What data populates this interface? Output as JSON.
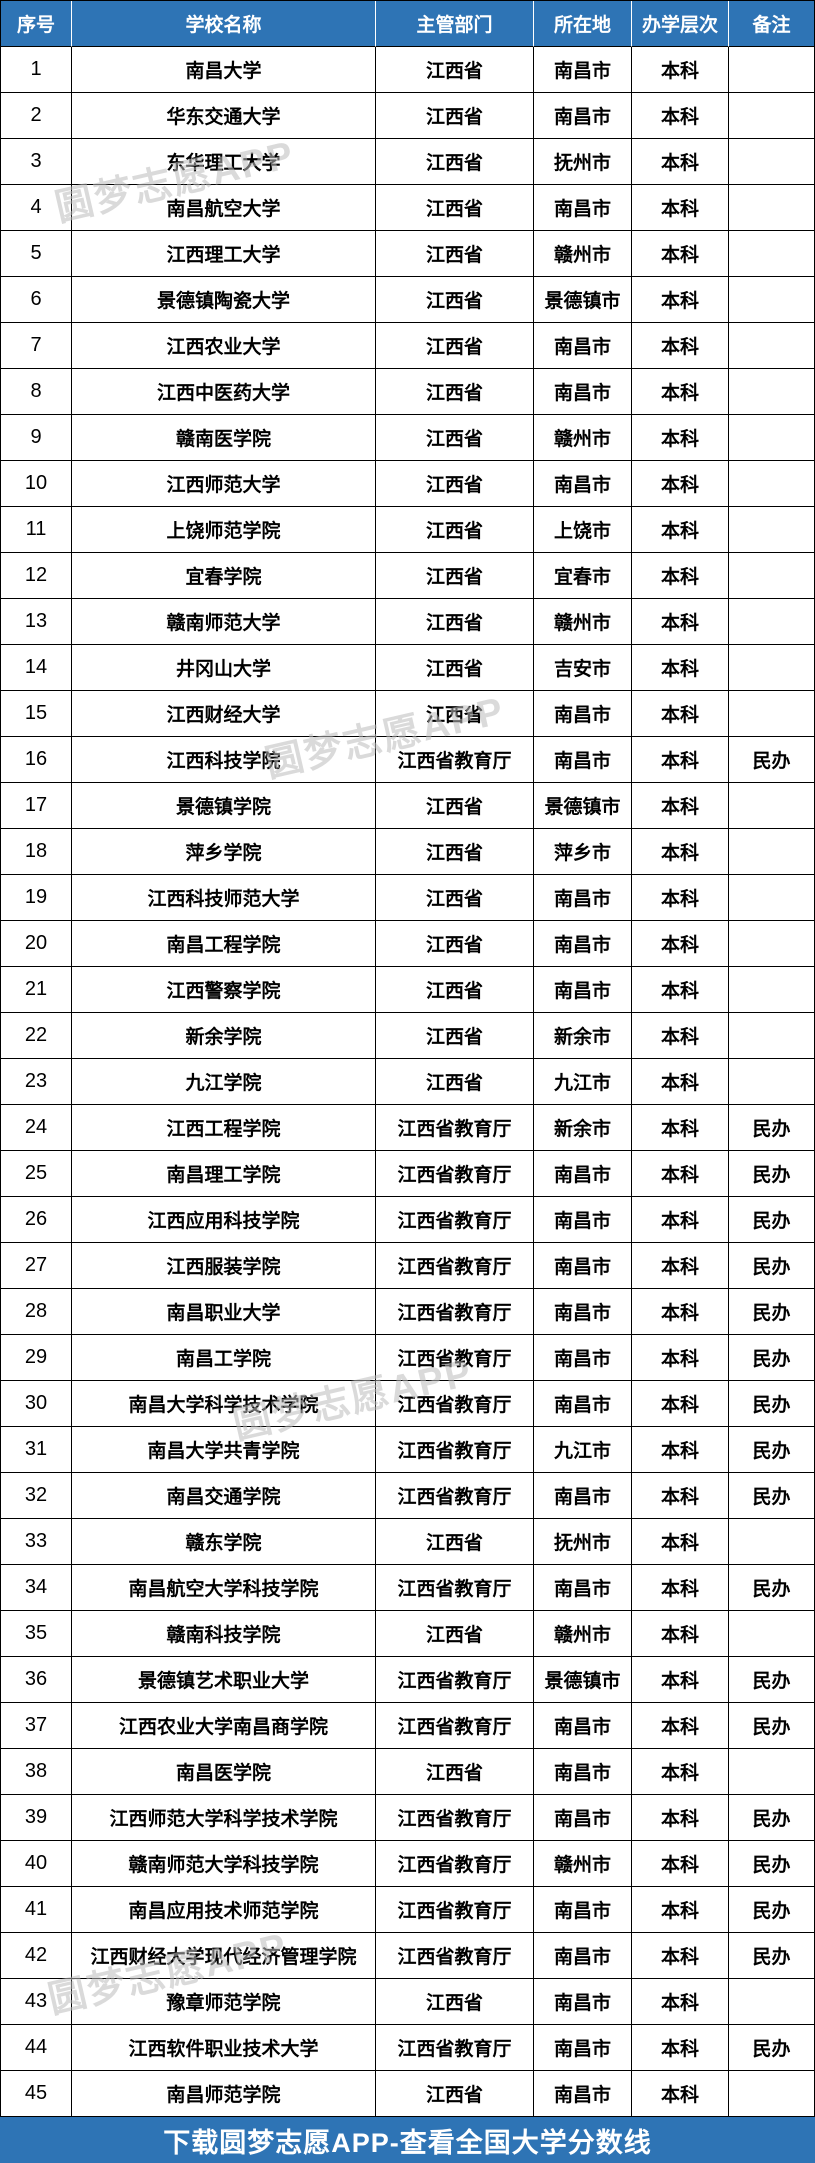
{
  "table": {
    "columns": [
      "序号",
      "学校名称",
      "主管部门",
      "所在地",
      "办学层次",
      "备注"
    ],
    "rows": [
      {
        "no": "1",
        "name": "南昌大学",
        "dept": "江西省",
        "city": "南昌市",
        "level": "本科",
        "note": ""
      },
      {
        "no": "2",
        "name": "华东交通大学",
        "dept": "江西省",
        "city": "南昌市",
        "level": "本科",
        "note": ""
      },
      {
        "no": "3",
        "name": "东华理工大学",
        "dept": "江西省",
        "city": "抚州市",
        "level": "本科",
        "note": ""
      },
      {
        "no": "4",
        "name": "南昌航空大学",
        "dept": "江西省",
        "city": "南昌市",
        "level": "本科",
        "note": ""
      },
      {
        "no": "5",
        "name": "江西理工大学",
        "dept": "江西省",
        "city": "赣州市",
        "level": "本科",
        "note": ""
      },
      {
        "no": "6",
        "name": "景德镇陶瓷大学",
        "dept": "江西省",
        "city": "景德镇市",
        "level": "本科",
        "note": ""
      },
      {
        "no": "7",
        "name": "江西农业大学",
        "dept": "江西省",
        "city": "南昌市",
        "level": "本科",
        "note": ""
      },
      {
        "no": "8",
        "name": "江西中医药大学",
        "dept": "江西省",
        "city": "南昌市",
        "level": "本科",
        "note": ""
      },
      {
        "no": "9",
        "name": "赣南医学院",
        "dept": "江西省",
        "city": "赣州市",
        "level": "本科",
        "note": ""
      },
      {
        "no": "10",
        "name": "江西师范大学",
        "dept": "江西省",
        "city": "南昌市",
        "level": "本科",
        "note": ""
      },
      {
        "no": "11",
        "name": "上饶师范学院",
        "dept": "江西省",
        "city": "上饶市",
        "level": "本科",
        "note": ""
      },
      {
        "no": "12",
        "name": "宜春学院",
        "dept": "江西省",
        "city": "宜春市",
        "level": "本科",
        "note": ""
      },
      {
        "no": "13",
        "name": "赣南师范大学",
        "dept": "江西省",
        "city": "赣州市",
        "level": "本科",
        "note": ""
      },
      {
        "no": "14",
        "name": "井冈山大学",
        "dept": "江西省",
        "city": "吉安市",
        "level": "本科",
        "note": ""
      },
      {
        "no": "15",
        "name": "江西财经大学",
        "dept": "江西省",
        "city": "南昌市",
        "level": "本科",
        "note": ""
      },
      {
        "no": "16",
        "name": "江西科技学院",
        "dept": "江西省教育厅",
        "city": "南昌市",
        "level": "本科",
        "note": "民办"
      },
      {
        "no": "17",
        "name": "景德镇学院",
        "dept": "江西省",
        "city": "景德镇市",
        "level": "本科",
        "note": ""
      },
      {
        "no": "18",
        "name": "萍乡学院",
        "dept": "江西省",
        "city": "萍乡市",
        "level": "本科",
        "note": ""
      },
      {
        "no": "19",
        "name": "江西科技师范大学",
        "dept": "江西省",
        "city": "南昌市",
        "level": "本科",
        "note": ""
      },
      {
        "no": "20",
        "name": "南昌工程学院",
        "dept": "江西省",
        "city": "南昌市",
        "level": "本科",
        "note": ""
      },
      {
        "no": "21",
        "name": "江西警察学院",
        "dept": "江西省",
        "city": "南昌市",
        "level": "本科",
        "note": ""
      },
      {
        "no": "22",
        "name": "新余学院",
        "dept": "江西省",
        "city": "新余市",
        "level": "本科",
        "note": ""
      },
      {
        "no": "23",
        "name": "九江学院",
        "dept": "江西省",
        "city": "九江市",
        "level": "本科",
        "note": ""
      },
      {
        "no": "24",
        "name": "江西工程学院",
        "dept": "江西省教育厅",
        "city": "新余市",
        "level": "本科",
        "note": "民办"
      },
      {
        "no": "25",
        "name": "南昌理工学院",
        "dept": "江西省教育厅",
        "city": "南昌市",
        "level": "本科",
        "note": "民办"
      },
      {
        "no": "26",
        "name": "江西应用科技学院",
        "dept": "江西省教育厅",
        "city": "南昌市",
        "level": "本科",
        "note": "民办"
      },
      {
        "no": "27",
        "name": "江西服装学院",
        "dept": "江西省教育厅",
        "city": "南昌市",
        "level": "本科",
        "note": "民办"
      },
      {
        "no": "28",
        "name": "南昌职业大学",
        "dept": "江西省教育厅",
        "city": "南昌市",
        "level": "本科",
        "note": "民办"
      },
      {
        "no": "29",
        "name": "南昌工学院",
        "dept": "江西省教育厅",
        "city": "南昌市",
        "level": "本科",
        "note": "民办"
      },
      {
        "no": "30",
        "name": "南昌大学科学技术学院",
        "dept": "江西省教育厅",
        "city": "南昌市",
        "level": "本科",
        "note": "民办"
      },
      {
        "no": "31",
        "name": "南昌大学共青学院",
        "dept": "江西省教育厅",
        "city": "九江市",
        "level": "本科",
        "note": "民办"
      },
      {
        "no": "32",
        "name": "南昌交通学院",
        "dept": "江西省教育厅",
        "city": "南昌市",
        "level": "本科",
        "note": "民办"
      },
      {
        "no": "33",
        "name": "赣东学院",
        "dept": "江西省",
        "city": "抚州市",
        "level": "本科",
        "note": ""
      },
      {
        "no": "34",
        "name": "南昌航空大学科技学院",
        "dept": "江西省教育厅",
        "city": "南昌市",
        "level": "本科",
        "note": "民办"
      },
      {
        "no": "35",
        "name": "赣南科技学院",
        "dept": "江西省",
        "city": "赣州市",
        "level": "本科",
        "note": ""
      },
      {
        "no": "36",
        "name": "景德镇艺术职业大学",
        "dept": "江西省教育厅",
        "city": "景德镇市",
        "level": "本科",
        "note": "民办"
      },
      {
        "no": "37",
        "name": "江西农业大学南昌商学院",
        "dept": "江西省教育厅",
        "city": "南昌市",
        "level": "本科",
        "note": "民办"
      },
      {
        "no": "38",
        "name": "南昌医学院",
        "dept": "江西省",
        "city": "南昌市",
        "level": "本科",
        "note": ""
      },
      {
        "no": "39",
        "name": "江西师范大学科学技术学院",
        "dept": "江西省教育厅",
        "city": "南昌市",
        "level": "本科",
        "note": "民办"
      },
      {
        "no": "40",
        "name": "赣南师范大学科技学院",
        "dept": "江西省教育厅",
        "city": "赣州市",
        "level": "本科",
        "note": "民办"
      },
      {
        "no": "41",
        "name": "南昌应用技术师范学院",
        "dept": "江西省教育厅",
        "city": "南昌市",
        "level": "本科",
        "note": "民办"
      },
      {
        "no": "42",
        "name": "江西财经大学现代经济管理学院",
        "dept": "江西省教育厅",
        "city": "南昌市",
        "level": "本科",
        "note": "民办"
      },
      {
        "no": "43",
        "name": "豫章师范学院",
        "dept": "江西省",
        "city": "南昌市",
        "level": "本科",
        "note": ""
      },
      {
        "no": "44",
        "name": "江西软件职业技术大学",
        "dept": "江西省教育厅",
        "city": "南昌市",
        "level": "本科",
        "note": "民办"
      },
      {
        "no": "45",
        "name": "南昌师范学院",
        "dept": "江西省",
        "city": "南昌市",
        "level": "本科",
        "note": ""
      }
    ]
  },
  "footer": {
    "text": "下载圆梦志愿APP-查看全国大学分数线"
  },
  "watermark": {
    "text": "圆梦志愿APP"
  },
  "colors": {
    "header_bg": "#2E74B5",
    "header_text": "#FFFFFF",
    "body_text": "#000000",
    "border": "#000000",
    "watermark": "#BDBDBD"
  }
}
